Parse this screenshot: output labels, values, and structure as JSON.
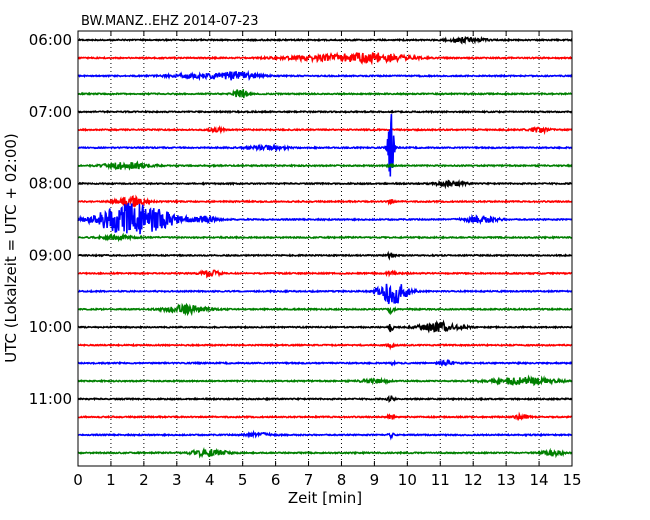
{
  "chart_data": {
    "type": "line",
    "title": "BW.MANZ..EHZ 2014-07-23",
    "xlabel": "Zeit  [min]",
    "ylabel": "UTC (Lokalzeit = UTC + 02:00)",
    "xlim": [
      0,
      15
    ],
    "x_ticks": [
      0,
      1,
      2,
      3,
      4,
      5,
      6,
      7,
      8,
      9,
      10,
      11,
      12,
      13,
      14,
      15
    ],
    "x_tick_labels": [
      "0",
      "1",
      "2",
      "3",
      "4",
      "5",
      "6",
      "7",
      "8",
      "9",
      "10",
      "11",
      "12",
      "13",
      "14",
      "15"
    ],
    "y_tick_labels": [
      {
        "trace": 0,
        "label": "06:00"
      },
      {
        "trace": 4,
        "label": "07:00"
      },
      {
        "trace": 8,
        "label": "08:00"
      },
      {
        "trace": 12,
        "label": "09:00"
      },
      {
        "trace": 16,
        "label": "10:00"
      },
      {
        "trace": 20,
        "label": "11:00"
      }
    ],
    "grid": "vertical-dotted",
    "trace_colors": [
      "#000000",
      "#ff0000",
      "#0000ff",
      "#008000"
    ],
    "traces": [
      {
        "start": "06:00",
        "events": [
          {
            "x": 11.8,
            "amp": 0.25,
            "width": 0.5
          }
        ]
      },
      {
        "start": "06:15",
        "events": [
          {
            "x": 9.0,
            "amp": 0.45,
            "width": 1.0
          },
          {
            "x": 7.5,
            "amp": 0.25,
            "width": 1.2
          }
        ]
      },
      {
        "start": "06:30",
        "events": [
          {
            "x": 4.8,
            "amp": 0.4,
            "width": 0.6
          },
          {
            "x": 3.5,
            "amp": 0.2,
            "width": 0.8
          }
        ]
      },
      {
        "start": "06:45",
        "events": [
          {
            "x": 4.95,
            "amp": 0.55,
            "width": 0.2
          }
        ]
      },
      {
        "start": "07:00",
        "events": []
      },
      {
        "start": "07:15",
        "events": [
          {
            "x": 14.0,
            "amp": 0.25,
            "width": 0.3
          },
          {
            "x": 4.2,
            "amp": 0.2,
            "width": 0.2
          }
        ]
      },
      {
        "start": "07:30",
        "events": [
          {
            "x": 9.5,
            "amp": 4.0,
            "width": 0.08
          },
          {
            "x": 5.7,
            "amp": 0.2,
            "width": 0.6
          }
        ]
      },
      {
        "start": "07:45",
        "events": [
          {
            "x": 1.5,
            "amp": 0.4,
            "width": 0.6
          },
          {
            "x": 9.5,
            "amp": 0.2,
            "width": 0.1
          }
        ]
      },
      {
        "start": "08:00",
        "events": [
          {
            "x": 11.3,
            "amp": 0.25,
            "width": 0.4
          }
        ]
      },
      {
        "start": "08:15",
        "events": [
          {
            "x": 1.6,
            "amp": 0.5,
            "width": 0.4
          },
          {
            "x": 9.5,
            "amp": 0.2,
            "width": 0.1
          }
        ]
      },
      {
        "start": "08:30",
        "events": [
          {
            "x": 1.5,
            "amp": 1.6,
            "width": 0.9
          },
          {
            "x": 2.6,
            "amp": 0.5,
            "width": 0.7
          },
          {
            "x": 12.2,
            "amp": 0.35,
            "width": 0.5
          },
          {
            "x": 3.9,
            "amp": 0.25,
            "width": 0.4
          }
        ]
      },
      {
        "start": "08:45",
        "events": [
          {
            "x": 1.2,
            "amp": 0.2,
            "width": 0.5
          }
        ]
      },
      {
        "start": "09:00",
        "events": [
          {
            "x": 9.5,
            "amp": 0.3,
            "width": 0.1
          }
        ]
      },
      {
        "start": "09:15",
        "events": [
          {
            "x": 4.0,
            "amp": 0.3,
            "width": 0.3
          },
          {
            "x": 9.5,
            "amp": 0.3,
            "width": 0.1
          }
        ]
      },
      {
        "start": "09:30",
        "events": [
          {
            "x": 9.6,
            "amp": 1.3,
            "width": 0.4
          },
          {
            "x": 9.5,
            "amp": 1.5,
            "width": 0.06
          }
        ]
      },
      {
        "start": "09:45",
        "events": [
          {
            "x": 3.3,
            "amp": 0.4,
            "width": 0.6
          },
          {
            "x": 9.5,
            "amp": 0.35,
            "width": 0.1
          }
        ]
      },
      {
        "start": "10:00",
        "events": [
          {
            "x": 11.0,
            "amp": 0.45,
            "width": 0.6
          },
          {
            "x": 9.5,
            "amp": 0.6,
            "width": 0.06
          }
        ]
      },
      {
        "start": "10:15",
        "events": [
          {
            "x": 9.5,
            "amp": 0.2,
            "width": 0.1
          }
        ]
      },
      {
        "start": "10:30",
        "events": [
          {
            "x": 11.2,
            "amp": 0.3,
            "width": 0.2
          },
          {
            "x": 9.5,
            "amp": 0.2,
            "width": 0.1
          }
        ]
      },
      {
        "start": "10:45",
        "events": [
          {
            "x": 13.5,
            "amp": 0.35,
            "width": 1.0
          },
          {
            "x": 9.0,
            "amp": 0.2,
            "width": 0.4
          }
        ]
      },
      {
        "start": "11:00",
        "events": [
          {
            "x": 9.5,
            "amp": 0.3,
            "width": 0.1
          }
        ]
      },
      {
        "start": "11:15",
        "events": [
          {
            "x": 13.5,
            "amp": 0.35,
            "width": 0.2
          },
          {
            "x": 9.5,
            "amp": 0.4,
            "width": 0.08
          }
        ]
      },
      {
        "start": "11:30",
        "events": [
          {
            "x": 5.5,
            "amp": 0.2,
            "width": 0.4
          },
          {
            "x": 9.5,
            "amp": 0.25,
            "width": 0.08
          }
        ]
      },
      {
        "start": "11:45",
        "events": [
          {
            "x": 4.0,
            "amp": 0.4,
            "width": 0.5
          },
          {
            "x": 14.4,
            "amp": 0.3,
            "width": 0.3
          }
        ]
      }
    ]
  }
}
